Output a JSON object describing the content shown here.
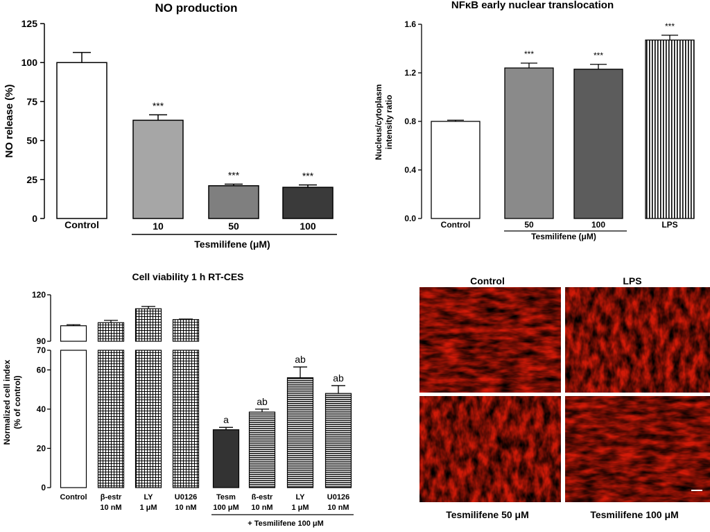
{
  "chart_data": [
    {
      "type": "bar",
      "title": "NO production",
      "ylabel": "NO release (%)",
      "ylim": [
        0,
        125
      ],
      "yticks": [
        0,
        25,
        50,
        75,
        100,
        125
      ],
      "categories": [
        "Control",
        "10",
        "50",
        "100"
      ],
      "values": [
        100,
        63,
        21,
        20
      ],
      "errors": [
        6.5,
        3.5,
        1,
        1.5
      ],
      "annotations": [
        "",
        "***",
        "***",
        "***"
      ],
      "fills": [
        "#ffffff",
        "#a6a6a6",
        "#7f7f7f",
        "#3a3a3a"
      ],
      "group_label": "Tesmilifene (μM)"
    },
    {
      "type": "bar",
      "title": "NFκB early nuclear translocation",
      "ylabel": "Nucleus/cytoplasm intensity ratio",
      "ylim": [
        0,
        1.6
      ],
      "yticks": [
        "0.0",
        "0.4",
        "0.8",
        "1.2",
        "1.6"
      ],
      "categories": [
        "Control",
        "50",
        "100",
        "LPS"
      ],
      "values": [
        0.8,
        1.24,
        1.23,
        1.47
      ],
      "errors": [
        0.01,
        0.04,
        0.04,
        0.04
      ],
      "annotations": [
        "",
        "***",
        "***",
        "***"
      ],
      "fills": [
        "#ffffff",
        "#8a8a8a",
        "#5c5c5c",
        "vertical-stripes"
      ],
      "group_label": "Tesmilifene (μM)"
    },
    {
      "type": "bar",
      "title": "Cell viability 1 h RT-CES",
      "ylabel": "Normalized cell index (% of control)",
      "ylim_lower": [
        0,
        70
      ],
      "ylim_upper": [
        90,
        120
      ],
      "yticks_lower": [
        0,
        20,
        40,
        60,
        70
      ],
      "yticks_upper": [
        90,
        120
      ],
      "categories": [
        {
          "l1": "Control",
          "l2": ""
        },
        {
          "l1": "β-estr",
          "l2": "10 nM"
        },
        {
          "l1": "LY",
          "l2": "1 μM"
        },
        {
          "l1": "U0126",
          "l2": "10 nM"
        },
        {
          "l1": "Tesm",
          "l2": "100 μM"
        },
        {
          "l1": "ß-estr",
          "l2": "10 nM"
        },
        {
          "l1": "LY",
          "l2": "1 μM"
        },
        {
          "l1": "U0126",
          "l2": "10 nM"
        }
      ],
      "values": [
        100,
        102,
        111,
        104,
        29.5,
        38.5,
        56,
        48
      ],
      "errors": [
        0.7,
        1.5,
        1.5,
        0.3,
        1.2,
        1.5,
        5.5,
        4
      ],
      "annotations": [
        "",
        "",
        "",
        "",
        "a",
        "ab",
        "ab",
        "ab"
      ],
      "fills": [
        "white",
        "grid",
        "grid",
        "grid",
        "#333333",
        "hstripes",
        "hstripes",
        "hstripes"
      ],
      "group_label": "+ Tesmilifene 100 μM"
    }
  ],
  "micrographs": {
    "labels": [
      "Control",
      "LPS",
      "Tesmilifene 50 μM",
      "Tesmilifene 100 μM"
    ]
  }
}
